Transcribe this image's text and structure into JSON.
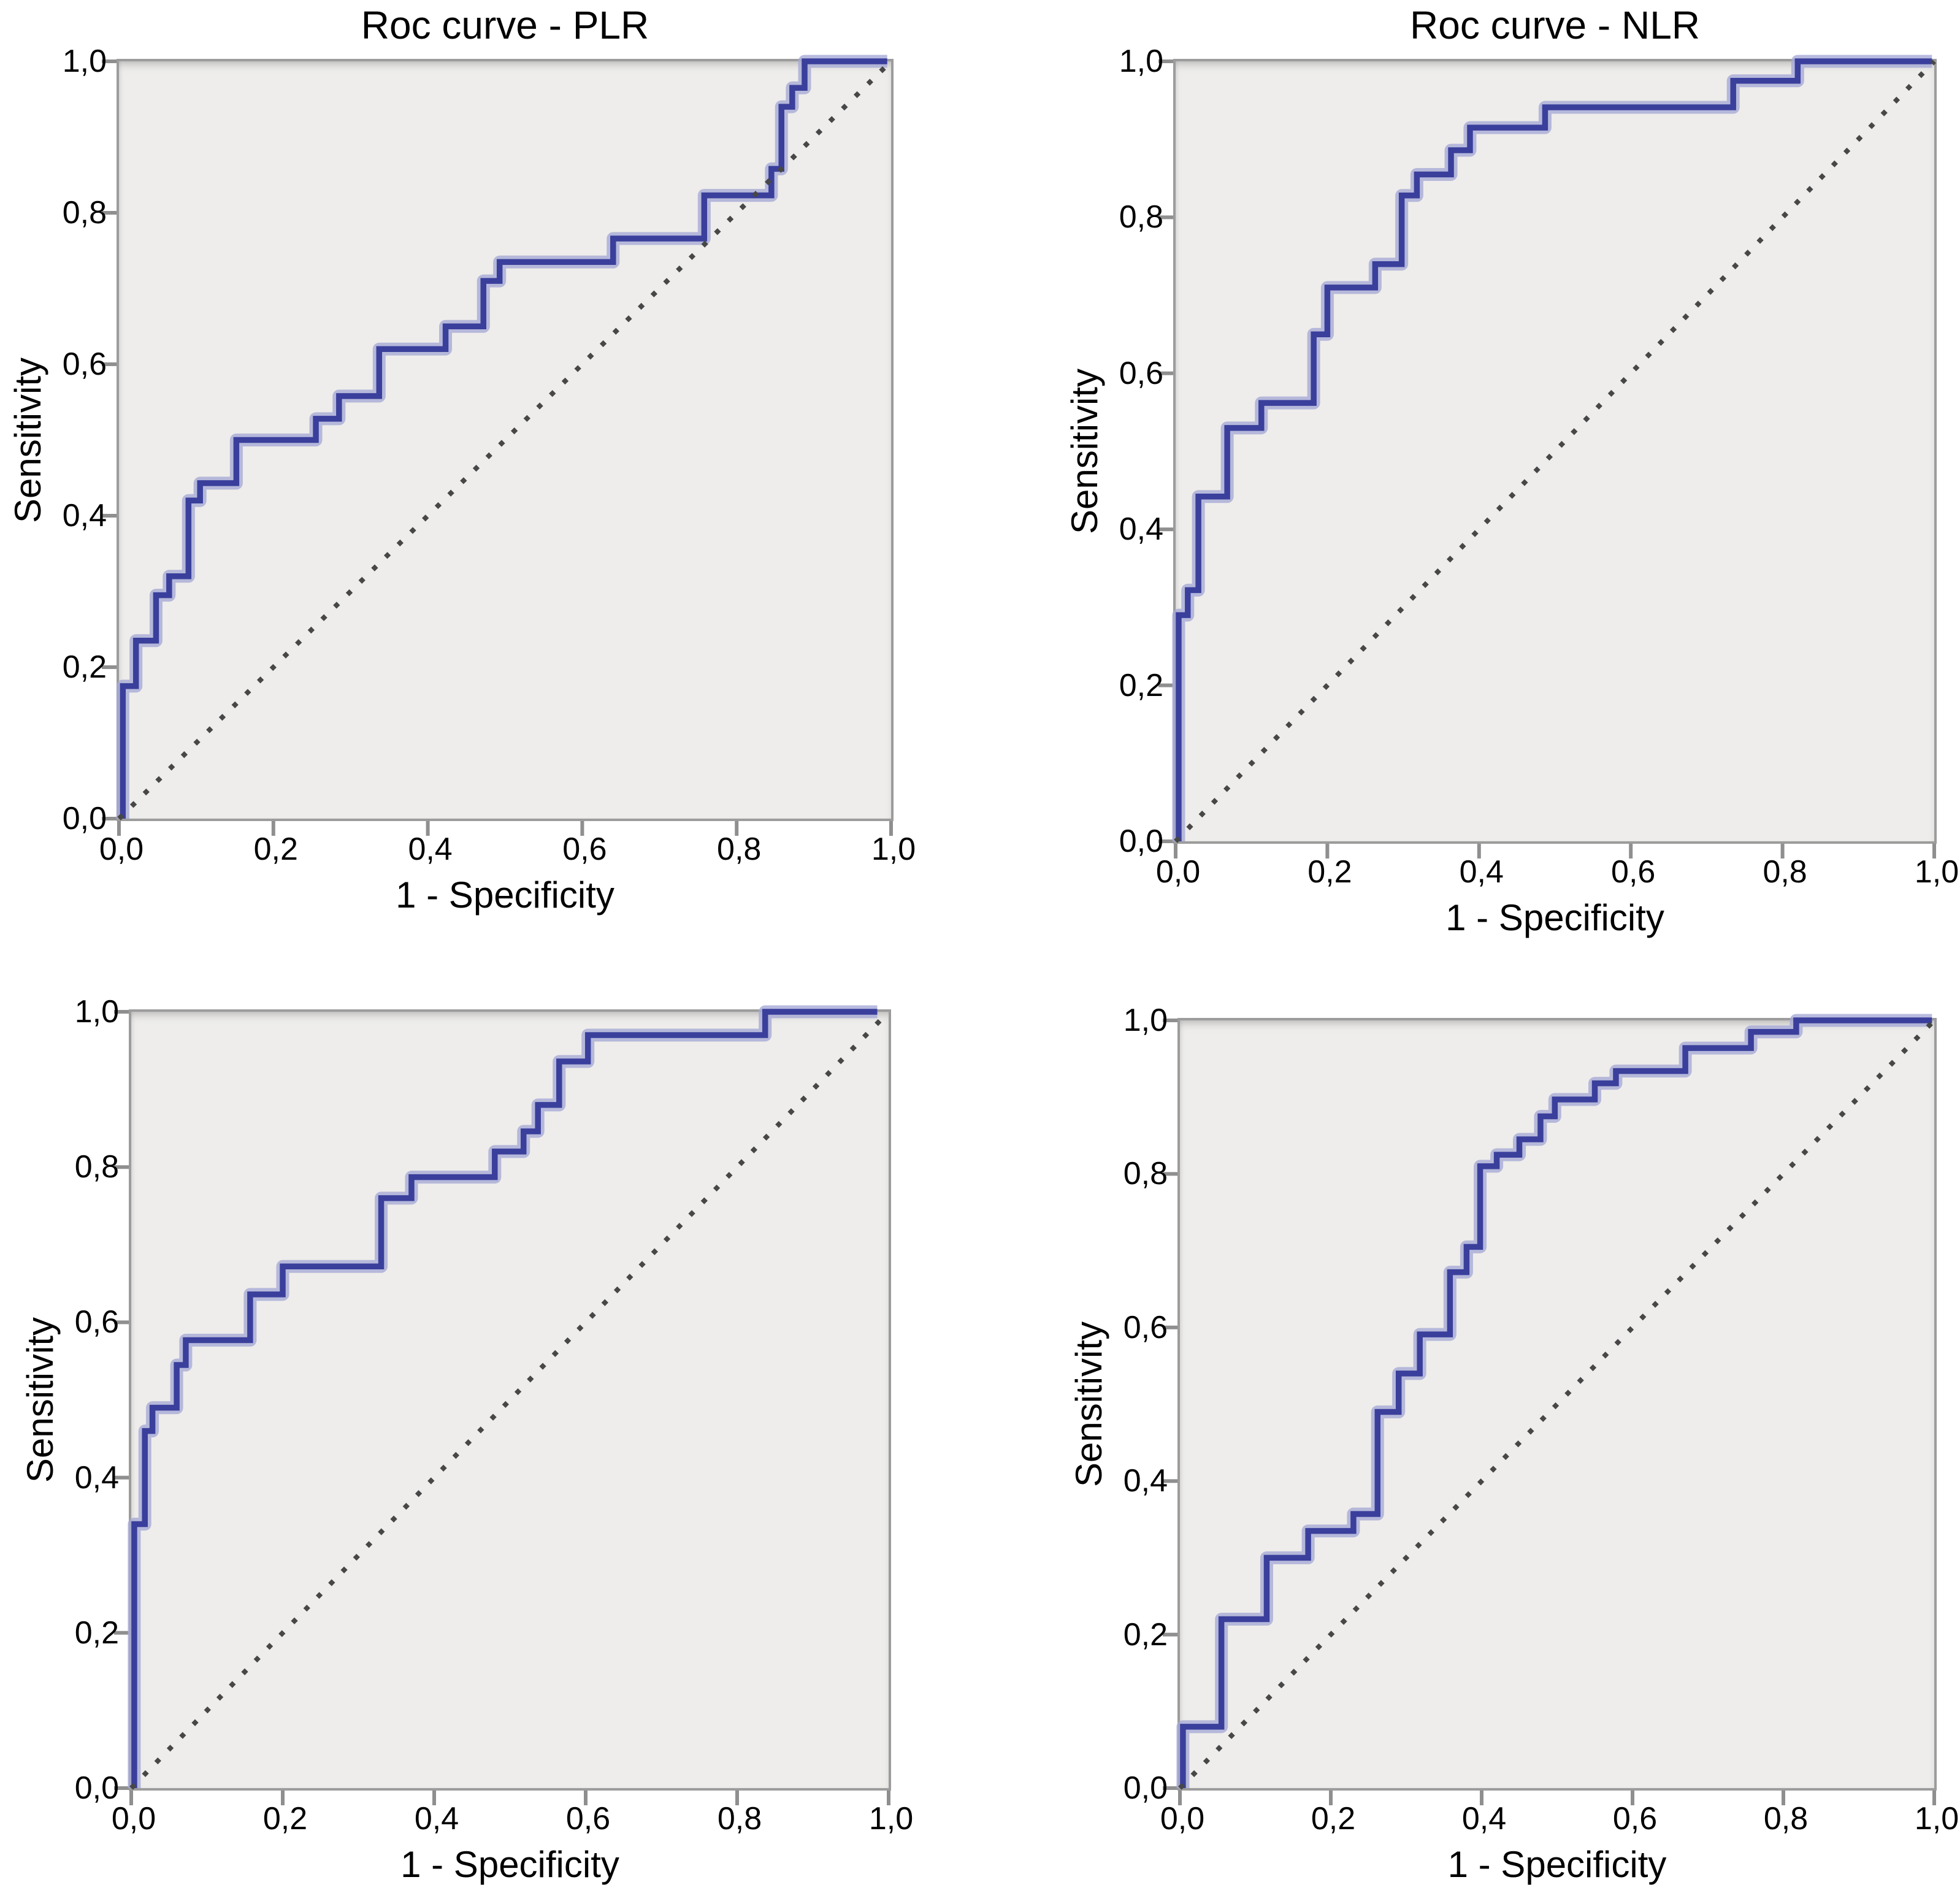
{
  "page": {
    "background": "#ffffff"
  },
  "colors": {
    "curve": "#3a3f9c",
    "curve_halo": "#a6aad6",
    "reference": "#474747",
    "plot_bg": "#eeedeb",
    "plot_border": "#9c9c9c",
    "tick": "#8f8f8f",
    "text": "#000000"
  },
  "chart_data": [
    {
      "id": "roc-plr-top",
      "type": "line",
      "title": "Roc curve - PLR",
      "xlabel": "1 - Specificity",
      "ylabel": "Sensitivity",
      "xlim": [
        0,
        1
      ],
      "ylim": [
        0,
        1
      ],
      "grid": false,
      "legend": "none",
      "xticks": [
        "0,0",
        "0,2",
        "0,4",
        "0,6",
        "0,8",
        "1,0"
      ],
      "yticks": [
        "0,0",
        "0,2",
        "0,4",
        "0,6",
        "0,8",
        "1,0"
      ],
      "xtick_values": [
        0,
        0.2,
        0.4,
        0.6,
        0.8,
        1
      ],
      "ytick_values": [
        0,
        0.2,
        0.4,
        0.6,
        0.8,
        1
      ],
      "series": [
        {
          "name": "ROC curve",
          "style": "step",
          "points": [
            [
              0.005,
              0
            ],
            [
              0.005,
              0.175
            ],
            [
              0.022,
              0.175
            ],
            [
              0.022,
              0.235
            ],
            [
              0.048,
              0.235
            ],
            [
              0.048,
              0.295
            ],
            [
              0.065,
              0.295
            ],
            [
              0.065,
              0.32
            ],
            [
              0.09,
              0.32
            ],
            [
              0.09,
              0.42
            ],
            [
              0.105,
              0.42
            ],
            [
              0.105,
              0.443
            ],
            [
              0.152,
              0.443
            ],
            [
              0.152,
              0.5
            ],
            [
              0.255,
              0.5
            ],
            [
              0.255,
              0.528
            ],
            [
              0.285,
              0.528
            ],
            [
              0.285,
              0.558
            ],
            [
              0.337,
              0.558
            ],
            [
              0.337,
              0.62
            ],
            [
              0.423,
              0.62
            ],
            [
              0.423,
              0.65
            ],
            [
              0.472,
              0.65
            ],
            [
              0.472,
              0.71
            ],
            [
              0.493,
              0.71
            ],
            [
              0.493,
              0.735
            ],
            [
              0.64,
              0.735
            ],
            [
              0.64,
              0.766
            ],
            [
              0.758,
              0.766
            ],
            [
              0.758,
              0.823
            ],
            [
              0.845,
              0.823
            ],
            [
              0.845,
              0.858
            ],
            [
              0.858,
              0.858
            ],
            [
              0.858,
              0.94
            ],
            [
              0.872,
              0.94
            ],
            [
              0.872,
              0.965
            ],
            [
              0.888,
              0.965
            ],
            [
              0.888,
              1.0
            ],
            [
              0.995,
              1.0
            ]
          ]
        },
        {
          "name": "Reference diagonal",
          "style": "dotted",
          "points": [
            [
              0,
              0
            ],
            [
              1,
              1
            ]
          ]
        }
      ]
    },
    {
      "id": "roc-nlr-top",
      "type": "line",
      "title": "Roc curve - NLR",
      "xlabel": "1 - Specificity",
      "ylabel": "Sensitivity",
      "xlim": [
        0,
        1
      ],
      "ylim": [
        0,
        1
      ],
      "grid": false,
      "legend": "none",
      "xticks": [
        "0,0",
        "0,2",
        "0,4",
        "0,6",
        "0,8",
        "1,0"
      ],
      "yticks": [
        "0,0",
        "0,2",
        "0,4",
        "0,6",
        "0,8",
        "1,0"
      ],
      "xtick_values": [
        0,
        0.2,
        0.4,
        0.6,
        0.8,
        1
      ],
      "ytick_values": [
        0,
        0.2,
        0.4,
        0.6,
        0.8,
        1
      ],
      "series": [
        {
          "name": "ROC curve",
          "style": "step",
          "points": [
            [
              0.004,
              0
            ],
            [
              0.004,
              0.29
            ],
            [
              0.016,
              0.29
            ],
            [
              0.016,
              0.322
            ],
            [
              0.03,
              0.322
            ],
            [
              0.03,
              0.442
            ],
            [
              0.068,
              0.442
            ],
            [
              0.068,
              0.53
            ],
            [
              0.113,
              0.53
            ],
            [
              0.113,
              0.562
            ],
            [
              0.182,
              0.562
            ],
            [
              0.182,
              0.65
            ],
            [
              0.2,
              0.65
            ],
            [
              0.2,
              0.71
            ],
            [
              0.263,
              0.71
            ],
            [
              0.263,
              0.74
            ],
            [
              0.298,
              0.74
            ],
            [
              0.298,
              0.828
            ],
            [
              0.318,
              0.828
            ],
            [
              0.318,
              0.855
            ],
            [
              0.363,
              0.855
            ],
            [
              0.363,
              0.886
            ],
            [
              0.388,
              0.886
            ],
            [
              0.388,
              0.915
            ],
            [
              0.487,
              0.915
            ],
            [
              0.487,
              0.941
            ],
            [
              0.735,
              0.941
            ],
            [
              0.735,
              0.975
            ],
            [
              0.82,
              0.975
            ],
            [
              0.82,
              1.0
            ],
            [
              0.997,
              1.0
            ]
          ]
        },
        {
          "name": "Reference diagonal",
          "style": "dotted",
          "points": [
            [
              0,
              0
            ],
            [
              1,
              1
            ]
          ]
        }
      ]
    },
    {
      "id": "roc-bottom-left",
      "type": "line",
      "title": "",
      "xlabel": "1 - Specificity",
      "ylabel": "Sensitivity",
      "xlim": [
        0,
        1
      ],
      "ylim": [
        0,
        1
      ],
      "grid": false,
      "legend": "none",
      "xticks": [
        "0,0",
        "0,2",
        "0,4",
        "0,6",
        "0,8",
        "1,0"
      ],
      "yticks": [
        "0,0",
        "0,2",
        "0,4",
        "0,6",
        "0,8",
        "1,0"
      ],
      "xtick_values": [
        0,
        0.2,
        0.4,
        0.6,
        0.8,
        1
      ],
      "ytick_values": [
        0,
        0.2,
        0.4,
        0.6,
        0.8,
        1
      ],
      "series": [
        {
          "name": "ROC curve",
          "style": "step",
          "points": [
            [
              0.004,
              0
            ],
            [
              0.004,
              0.34
            ],
            [
              0.018,
              0.34
            ],
            [
              0.018,
              0.46
            ],
            [
              0.028,
              0.46
            ],
            [
              0.028,
              0.49
            ],
            [
              0.06,
              0.49
            ],
            [
              0.06,
              0.545
            ],
            [
              0.072,
              0.545
            ],
            [
              0.072,
              0.577
            ],
            [
              0.157,
              0.577
            ],
            [
              0.157,
              0.636
            ],
            [
              0.2,
              0.636
            ],
            [
              0.2,
              0.672
            ],
            [
              0.33,
              0.672
            ],
            [
              0.33,
              0.76
            ],
            [
              0.37,
              0.76
            ],
            [
              0.37,
              0.787
            ],
            [
              0.48,
              0.787
            ],
            [
              0.48,
              0.82
            ],
            [
              0.518,
              0.82
            ],
            [
              0.518,
              0.846
            ],
            [
              0.537,
              0.846
            ],
            [
              0.537,
              0.88
            ],
            [
              0.565,
              0.88
            ],
            [
              0.565,
              0.936
            ],
            [
              0.603,
              0.936
            ],
            [
              0.603,
              0.97
            ],
            [
              0.837,
              0.97
            ],
            [
              0.837,
              1.0
            ],
            [
              0.985,
              1.0
            ]
          ]
        },
        {
          "name": "Reference diagonal",
          "style": "dotted",
          "points": [
            [
              0,
              0
            ],
            [
              1,
              1
            ]
          ]
        }
      ]
    },
    {
      "id": "roc-bottom-right",
      "type": "line",
      "title": "",
      "xlabel": "1 - Specificity",
      "ylabel": "Sensitivity",
      "xlim": [
        0,
        1
      ],
      "ylim": [
        0,
        1
      ],
      "grid": false,
      "legend": "none",
      "xticks": [
        "0,0",
        "0,2",
        "0,4",
        "0,6",
        "0,8",
        "1,0"
      ],
      "yticks": [
        "0,0",
        "0,2",
        "0,4",
        "0,6",
        "0,8",
        "1,0"
      ],
      "xtick_values": [
        0,
        0.2,
        0.4,
        0.6,
        0.8,
        1
      ],
      "ytick_values": [
        0,
        0.2,
        0.4,
        0.6,
        0.8,
        1
      ],
      "series": [
        {
          "name": "ROC curve",
          "style": "step",
          "points": [
            [
              0.004,
              0
            ],
            [
              0.004,
              0.08
            ],
            [
              0.055,
              0.08
            ],
            [
              0.055,
              0.22
            ],
            [
              0.115,
              0.22
            ],
            [
              0.115,
              0.3
            ],
            [
              0.17,
              0.3
            ],
            [
              0.17,
              0.335
            ],
            [
              0.23,
              0.335
            ],
            [
              0.23,
              0.357
            ],
            [
              0.262,
              0.357
            ],
            [
              0.262,
              0.49
            ],
            [
              0.29,
              0.49
            ],
            [
              0.29,
              0.54
            ],
            [
              0.318,
              0.54
            ],
            [
              0.318,
              0.591
            ],
            [
              0.358,
              0.591
            ],
            [
              0.358,
              0.672
            ],
            [
              0.38,
              0.672
            ],
            [
              0.38,
              0.705
            ],
            [
              0.398,
              0.705
            ],
            [
              0.398,
              0.81
            ],
            [
              0.42,
              0.81
            ],
            [
              0.42,
              0.825
            ],
            [
              0.45,
              0.825
            ],
            [
              0.45,
              0.845
            ],
            [
              0.478,
              0.845
            ],
            [
              0.478,
              0.875
            ],
            [
              0.497,
              0.875
            ],
            [
              0.497,
              0.897
            ],
            [
              0.55,
              0.897
            ],
            [
              0.55,
              0.918
            ],
            [
              0.578,
              0.918
            ],
            [
              0.578,
              0.934
            ],
            [
              0.67,
              0.934
            ],
            [
              0.67,
              0.964
            ],
            [
              0.757,
              0.964
            ],
            [
              0.757,
              0.985
            ],
            [
              0.817,
              0.985
            ],
            [
              0.817,
              1.0
            ],
            [
              0.997,
              1.0
            ]
          ]
        },
        {
          "name": "Reference diagonal",
          "style": "dotted",
          "points": [
            [
              0,
              0
            ],
            [
              1,
              1
            ]
          ]
        }
      ]
    }
  ]
}
